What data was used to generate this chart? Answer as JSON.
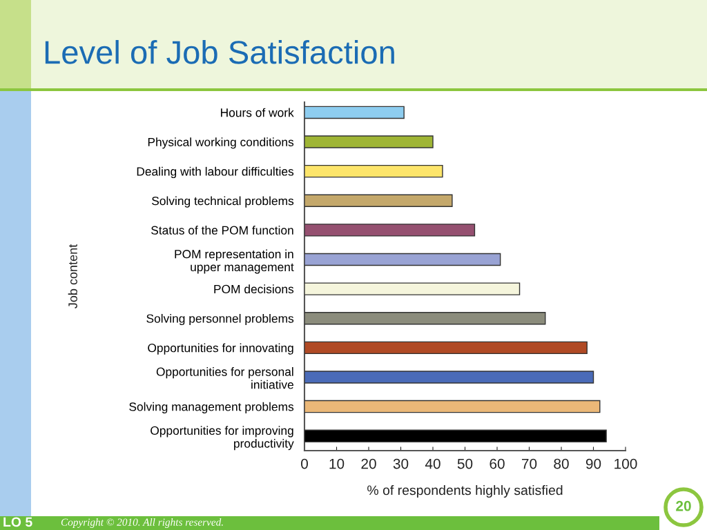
{
  "chart_data": {
    "type": "bar",
    "orientation": "horizontal",
    "title": "Level of Job Satisfaction",
    "xlabel": "% of respondents highly satisfied",
    "ylabel": "Job content",
    "categories": [
      "Hours of work",
      "Physical working conditions",
      "Dealing with labour difficulties",
      "Solving technical problems",
      "Status of the POM function",
      "POM representation in\nupper management",
      "POM decisions",
      "Solving personnel problems",
      "Opportunities for innovating",
      "Opportunities for personal\ninitiative",
      "Solving management problems",
      "Opportunities for improving\nproductivity"
    ],
    "values": [
      31,
      40,
      43,
      46,
      53,
      61,
      67,
      75,
      88,
      90,
      92,
      94
    ],
    "colors": [
      "#8ecdf0",
      "#9fb535",
      "#fde56b",
      "#c4a86b",
      "#955070",
      "#99a3d4",
      "#f5f5dc",
      "#8b8c7c",
      "#b04a25",
      "#4a6bb8",
      "#ebb878",
      "#000000"
    ],
    "xlim": [
      0,
      100
    ],
    "xticks": [
      0,
      10,
      20,
      30,
      40,
      50,
      60,
      70,
      80,
      90,
      100
    ],
    "grid": false,
    "annotations": [
      "LO 5",
      "Copyright © 2010. All rights reserved.",
      "20"
    ]
  }
}
